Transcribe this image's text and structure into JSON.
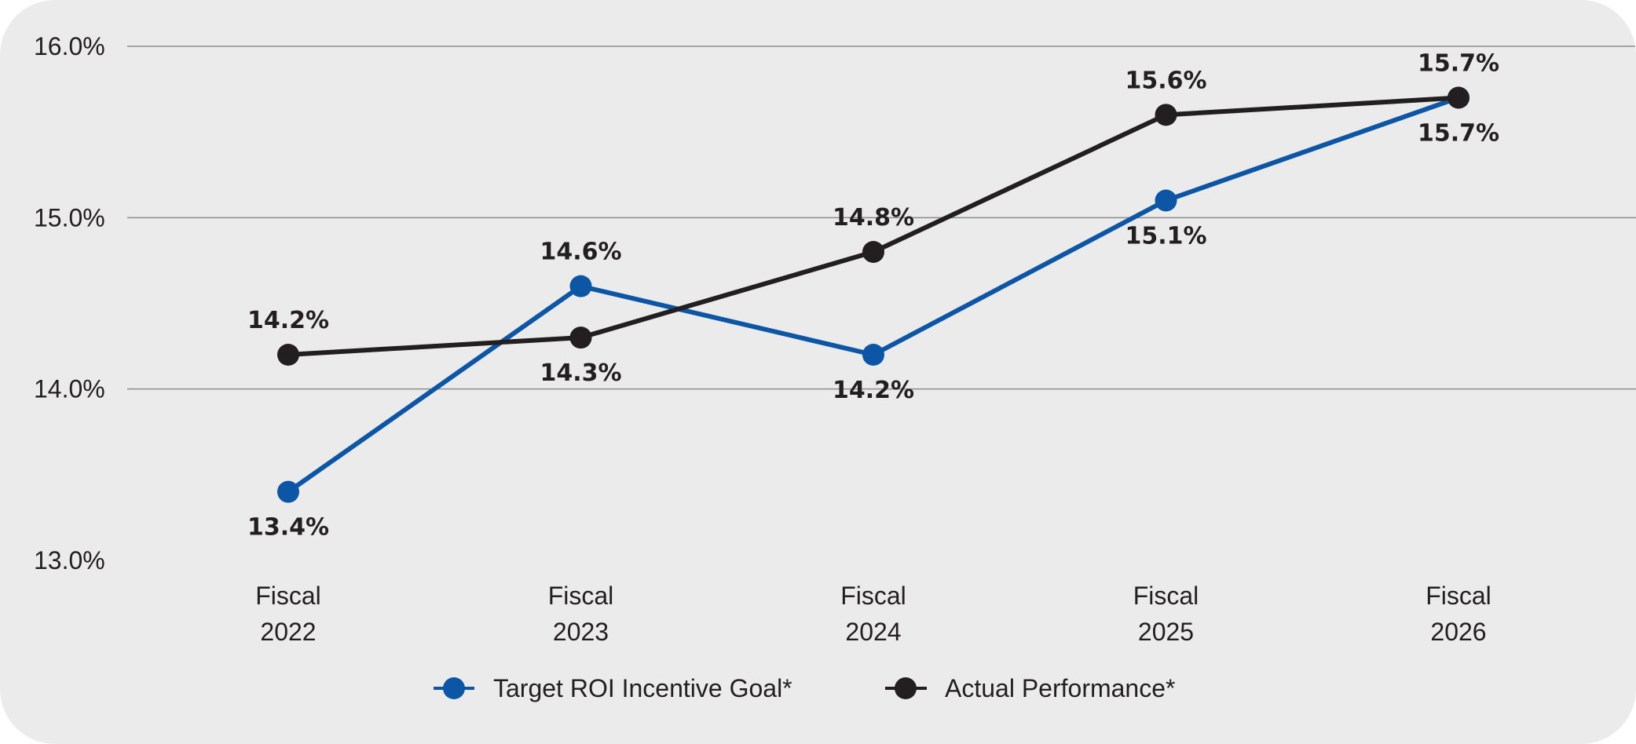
{
  "chart_data": {
    "type": "line",
    "title": "",
    "xlabel": "",
    "ylabel": "",
    "categories": [
      [
        "Fiscal",
        "2022"
      ],
      [
        "Fiscal",
        "2023"
      ],
      [
        "Fiscal",
        "2024"
      ],
      [
        "Fiscal",
        "2025"
      ],
      [
        "Fiscal",
        "2026"
      ]
    ],
    "ylim": [
      13.0,
      16.0
    ],
    "yticks": [
      13.0,
      14.0,
      15.0,
      16.0
    ],
    "ytick_labels": [
      "13.0%",
      "14.0%",
      "15.0%",
      "16.0%"
    ],
    "grid": true,
    "legend_position": "bottom-center",
    "series": [
      {
        "name": "Target ROI Incentive Goal*",
        "color": "#0d56a6",
        "values": [
          13.4,
          14.6,
          14.2,
          15.1,
          15.7
        ],
        "labels": [
          "13.4%",
          "14.6%",
          "14.2%",
          "15.1%",
          "15.7%"
        ],
        "label_positions": [
          "below",
          "above",
          "below",
          "below",
          "below"
        ]
      },
      {
        "name": "Actual Performance*",
        "color": "#231f20",
        "values": [
          14.2,
          14.3,
          14.8,
          15.6,
          15.7
        ],
        "labels": [
          "14.2%",
          "14.3%",
          "14.8%",
          "15.6%",
          "15.7%"
        ],
        "label_positions": [
          "above",
          "below",
          "above",
          "above",
          "above"
        ]
      }
    ]
  }
}
